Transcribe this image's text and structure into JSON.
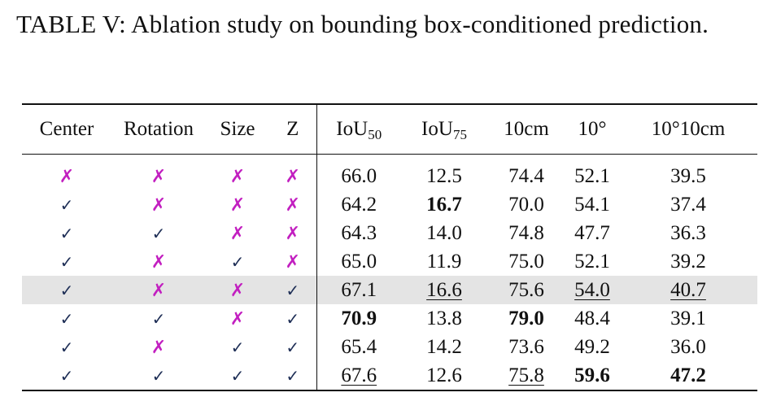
{
  "caption": "TABLE V: Ablation study on bounding box-conditioned prediction.",
  "headers": [
    {
      "base": "Center",
      "sub": ""
    },
    {
      "base": "Rotation",
      "sub": ""
    },
    {
      "base": "Size",
      "sub": ""
    },
    {
      "base": "Z",
      "sub": ""
    },
    {
      "base": "IoU",
      "sub": "50"
    },
    {
      "base": "IoU",
      "sub": "75"
    },
    {
      "base": "10cm",
      "sub": ""
    },
    {
      "base": "10°",
      "sub": ""
    },
    {
      "base": "10°10cm",
      "sub": ""
    }
  ],
  "marks": {
    "yes": "✓",
    "no": "✗"
  },
  "colors": {
    "cross": "#c21fc0",
    "check": "#1d2d55",
    "highlight_row": "#e4e4e4"
  },
  "highlighted_row_index": 4,
  "rows": [
    {
      "flags": [
        "no",
        "no",
        "no",
        "no"
      ],
      "values": [
        "66.0",
        "12.5",
        "74.4",
        "52.1",
        "39.5"
      ],
      "bold": [
        false,
        false,
        false,
        false,
        false
      ],
      "underline": [
        false,
        false,
        false,
        false,
        false
      ]
    },
    {
      "flags": [
        "yes",
        "no",
        "no",
        "no"
      ],
      "values": [
        "64.2",
        "16.7",
        "70.0",
        "54.1",
        "37.4"
      ],
      "bold": [
        false,
        true,
        false,
        false,
        false
      ],
      "underline": [
        false,
        false,
        false,
        false,
        false
      ]
    },
    {
      "flags": [
        "yes",
        "yes",
        "no",
        "no"
      ],
      "values": [
        "64.3",
        "14.0",
        "74.8",
        "47.7",
        "36.3"
      ],
      "bold": [
        false,
        false,
        false,
        false,
        false
      ],
      "underline": [
        false,
        false,
        false,
        false,
        false
      ]
    },
    {
      "flags": [
        "yes",
        "no",
        "yes",
        "no"
      ],
      "values": [
        "65.0",
        "11.9",
        "75.0",
        "52.1",
        "39.2"
      ],
      "bold": [
        false,
        false,
        false,
        false,
        false
      ],
      "underline": [
        false,
        false,
        false,
        false,
        false
      ]
    },
    {
      "flags": [
        "yes",
        "no",
        "no",
        "yes"
      ],
      "values": [
        "67.1",
        "16.6",
        "75.6",
        "54.0",
        "40.7"
      ],
      "bold": [
        false,
        false,
        false,
        false,
        false
      ],
      "underline": [
        false,
        true,
        false,
        true,
        true
      ]
    },
    {
      "flags": [
        "yes",
        "yes",
        "no",
        "yes"
      ],
      "values": [
        "70.9",
        "13.8",
        "79.0",
        "48.4",
        "39.1"
      ],
      "bold": [
        true,
        false,
        true,
        false,
        false
      ],
      "underline": [
        false,
        false,
        false,
        false,
        false
      ]
    },
    {
      "flags": [
        "yes",
        "no",
        "yes",
        "yes"
      ],
      "values": [
        "65.4",
        "14.2",
        "73.6",
        "49.2",
        "36.0"
      ],
      "bold": [
        false,
        false,
        false,
        false,
        false
      ],
      "underline": [
        false,
        false,
        false,
        false,
        false
      ]
    },
    {
      "flags": [
        "yes",
        "yes",
        "yes",
        "yes"
      ],
      "values": [
        "67.6",
        "12.6",
        "75.8",
        "59.6",
        "47.2"
      ],
      "bold": [
        false,
        false,
        false,
        true,
        true
      ],
      "underline": [
        true,
        false,
        true,
        false,
        false
      ]
    }
  ]
}
